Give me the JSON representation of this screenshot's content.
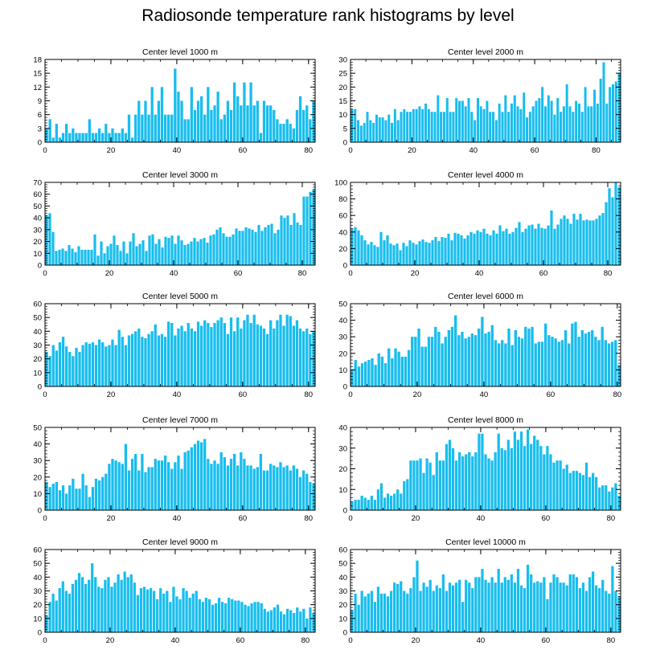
{
  "title": "Radiosonde temperature rank histograms by level",
  "colors": {
    "bar": "#18BDEE",
    "axis": "#000000",
    "background": "#ffffff"
  },
  "chart_data": [
    {
      "type": "bar",
      "title": "Center level 1000 m",
      "x_start": 0,
      "xticks": [
        0,
        20,
        40,
        60,
        80
      ],
      "ylim": [
        0,
        18
      ],
      "yticks": [
        0,
        3,
        6,
        9,
        12,
        15,
        18
      ],
      "values": [
        3,
        5,
        1,
        4,
        1,
        2,
        4,
        2,
        3,
        2,
        2,
        2,
        2,
        5,
        2,
        2,
        3,
        2,
        4,
        2,
        3,
        2,
        2,
        3,
        2,
        6,
        1,
        6,
        9,
        6,
        9,
        6,
        12,
        6,
        9,
        12,
        6,
        6,
        6,
        16,
        11,
        9,
        5,
        5,
        12,
        7,
        9,
        10,
        6,
        12,
        7,
        8,
        11,
        5,
        6,
        9,
        7,
        13,
        10,
        8,
        13,
        8,
        13,
        8,
        9,
        2,
        9,
        8,
        8,
        7,
        5,
        4,
        4,
        5,
        4,
        3,
        7,
        10,
        7,
        8,
        5,
        9
      ]
    },
    {
      "type": "bar",
      "title": "Center level 2000 m",
      "x_start": 0,
      "xticks": [
        0,
        20,
        40,
        60,
        80
      ],
      "ylim": [
        0,
        30
      ],
      "yticks": [
        0,
        5,
        10,
        15,
        20,
        25,
        30
      ],
      "values": [
        12,
        12,
        8,
        6,
        7,
        11,
        8,
        7,
        10,
        9,
        9,
        8,
        10,
        7,
        12,
        8,
        11,
        12,
        11,
        11,
        12,
        12,
        13,
        12,
        14,
        12,
        11,
        11,
        17,
        11,
        11,
        16,
        11,
        11,
        16,
        15,
        15,
        13,
        16,
        11,
        8,
        16,
        13,
        12,
        15,
        11,
        11,
        8,
        14,
        11,
        17,
        11,
        14,
        17,
        13,
        12,
        18,
        9,
        11,
        13,
        15,
        16,
        20,
        13,
        17,
        15,
        10,
        16,
        11,
        13,
        21,
        13,
        11,
        15,
        14,
        11,
        20,
        13,
        13,
        19,
        14,
        23,
        29,
        14,
        20,
        21,
        22,
        25
      ]
    },
    {
      "type": "bar",
      "title": "Center level 3000 m",
      "x_start": 0,
      "xticks": [
        0,
        20,
        40,
        60,
        80
      ],
      "ylim": [
        0,
        70
      ],
      "yticks": [
        0,
        10,
        20,
        30,
        40,
        50,
        60,
        70
      ],
      "values": [
        42,
        44,
        28,
        12,
        13,
        14,
        12,
        17,
        14,
        11,
        16,
        13,
        13,
        13,
        13,
        26,
        8,
        20,
        10,
        16,
        18,
        25,
        17,
        12,
        20,
        10,
        20,
        27,
        16,
        18,
        21,
        12,
        25,
        26,
        18,
        22,
        15,
        24,
        23,
        25,
        18,
        25,
        21,
        17,
        18,
        20,
        23,
        20,
        22,
        23,
        19,
        25,
        26,
        30,
        32,
        27,
        24,
        24,
        26,
        31,
        29,
        29,
        32,
        31,
        30,
        28,
        34,
        29,
        32,
        34,
        35,
        27,
        30,
        42,
        40,
        42,
        34,
        44,
        36,
        34,
        58,
        58,
        62,
        64
      ]
    },
    {
      "type": "bar",
      "title": "Center level 4000 m",
      "x_start": 0,
      "xticks": [
        0,
        20,
        40,
        60,
        80
      ],
      "ylim": [
        0,
        100
      ],
      "yticks": [
        0,
        20,
        40,
        60,
        80,
        100
      ],
      "values": [
        44,
        46,
        42,
        36,
        30,
        25,
        28,
        24,
        22,
        40,
        30,
        36,
        26,
        24,
        26,
        18,
        27,
        23,
        30,
        27,
        25,
        29,
        31,
        28,
        27,
        30,
        34,
        29,
        34,
        33,
        38,
        30,
        39,
        38,
        36,
        32,
        36,
        40,
        38,
        42,
        40,
        44,
        38,
        36,
        42,
        38,
        48,
        41,
        44,
        38,
        40,
        45,
        52,
        40,
        44,
        48,
        49,
        44,
        50,
        45,
        44,
        48,
        66,
        44,
        49,
        56,
        60,
        56,
        50,
        62,
        55,
        62,
        54,
        55,
        54,
        54,
        56,
        60,
        63,
        76,
        93,
        82,
        100,
        94
      ]
    },
    {
      "type": "bar",
      "title": "Center level 5000 m",
      "x_start": 0,
      "xticks": [
        0,
        20,
        40,
        60,
        80
      ],
      "ylim": [
        0,
        60
      ],
      "yticks": [
        0,
        10,
        20,
        30,
        40,
        50,
        60
      ],
      "values": [
        25,
        22,
        30,
        26,
        32,
        36,
        29,
        25,
        22,
        28,
        25,
        30,
        32,
        31,
        32,
        30,
        34,
        32,
        29,
        30,
        34,
        30,
        41,
        36,
        30,
        37,
        38,
        40,
        42,
        36,
        35,
        38,
        40,
        45,
        37,
        38,
        36,
        47,
        46,
        37,
        42,
        44,
        40,
        46,
        42,
        40,
        47,
        44,
        48,
        46,
        43,
        46,
        48,
        50,
        46,
        38,
        50,
        40,
        50,
        42,
        48,
        52,
        46,
        52,
        45,
        44,
        42,
        38,
        48,
        42,
        48,
        52,
        44,
        52,
        51,
        44,
        48,
        42,
        40,
        42,
        38,
        40
      ]
    },
    {
      "type": "bar",
      "title": "Center level 6000 m",
      "x_start": 0,
      "xticks": [
        0,
        20,
        40,
        60,
        80
      ],
      "ylim": [
        0,
        50
      ],
      "yticks": [
        0,
        10,
        20,
        30,
        40,
        50
      ],
      "values": [
        10,
        16,
        12,
        14,
        15,
        16,
        17,
        13,
        20,
        18,
        14,
        23,
        17,
        23,
        21,
        18,
        18,
        22,
        30,
        30,
        35,
        24,
        24,
        30,
        30,
        36,
        33,
        26,
        30,
        34,
        36,
        43,
        31,
        33,
        29,
        30,
        32,
        31,
        35,
        42,
        32,
        33,
        37,
        28,
        26,
        28,
        26,
        35,
        25,
        34,
        30,
        29,
        36,
        35,
        36,
        26,
        27,
        27,
        38,
        31,
        30,
        29,
        27,
        28,
        34,
        26,
        38,
        39,
        30,
        34,
        32,
        33,
        34,
        30,
        28,
        36,
        28,
        26,
        27,
        28,
        13
      ]
    },
    {
      "type": "bar",
      "title": "Center level 7000 m",
      "x_start": 0,
      "xticks": [
        0,
        20,
        40,
        60,
        80
      ],
      "ylim": [
        0,
        50
      ],
      "yticks": [
        0,
        10,
        20,
        30,
        40,
        50
      ],
      "values": [
        17,
        14,
        16,
        17,
        12,
        15,
        10,
        15,
        19,
        13,
        13,
        22,
        15,
        8,
        14,
        19,
        18,
        20,
        22,
        28,
        31,
        30,
        29,
        28,
        40,
        24,
        31,
        34,
        24,
        34,
        23,
        26,
        26,
        31,
        30,
        30,
        33,
        29,
        25,
        29,
        33,
        25,
        35,
        36,
        38,
        40,
        42,
        41,
        43,
        31,
        28,
        30,
        28,
        35,
        32,
        27,
        31,
        34,
        27,
        35,
        31,
        27,
        27,
        25,
        26,
        34,
        24,
        24,
        28,
        27,
        26,
        29,
        26,
        27,
        24,
        27,
        25,
        20,
        24,
        22,
        17,
        16
      ]
    },
    {
      "type": "bar",
      "title": "Center level 8000 m",
      "x_start": 0,
      "xticks": [
        0,
        20,
        40,
        60,
        80
      ],
      "ylim": [
        0,
        40
      ],
      "yticks": [
        0,
        10,
        20,
        30,
        40
      ],
      "values": [
        4,
        5,
        5,
        7,
        6,
        5,
        7,
        5,
        10,
        13,
        6,
        8,
        7,
        8,
        10,
        8,
        14,
        15,
        24,
        24,
        24,
        25,
        18,
        25,
        23,
        17,
        28,
        24,
        24,
        32,
        34,
        30,
        24,
        28,
        26,
        27,
        28,
        26,
        28,
        37,
        37,
        27,
        25,
        24,
        28,
        37,
        30,
        29,
        34,
        30,
        38,
        34,
        38,
        31,
        39,
        32,
        36,
        34,
        31,
        27,
        31,
        27,
        23,
        24,
        24,
        20,
        22,
        18,
        19,
        19,
        18,
        17,
        23,
        16,
        18,
        16,
        11,
        12,
        12,
        9,
        11,
        13,
        7
      ]
    },
    {
      "type": "bar",
      "title": "Center level 9000 m",
      "x_start": 0,
      "xticks": [
        0,
        20,
        40,
        60,
        80
      ],
      "ylim": [
        0,
        60
      ],
      "yticks": [
        0,
        10,
        20,
        30,
        40,
        50,
        60
      ],
      "values": [
        12,
        22,
        28,
        23,
        32,
        37,
        30,
        28,
        35,
        38,
        43,
        40,
        35,
        38,
        50,
        40,
        33,
        32,
        38,
        40,
        33,
        36,
        42,
        38,
        44,
        40,
        42,
        36,
        27,
        32,
        33,
        31,
        32,
        30,
        24,
        32,
        28,
        30,
        22,
        33,
        26,
        24,
        32,
        30,
        25,
        28,
        30,
        24,
        22,
        25,
        24,
        20,
        21,
        25,
        22,
        21,
        25,
        24,
        23,
        23,
        22,
        20,
        19,
        21,
        22,
        22,
        21,
        17,
        15,
        16,
        18,
        20,
        15,
        13,
        17,
        16,
        14,
        18,
        15,
        17,
        10,
        18,
        14
      ]
    },
    {
      "type": "bar",
      "title": "Center level 10000 m",
      "x_start": 0,
      "xticks": [
        0,
        20,
        40,
        60,
        80
      ],
      "ylim": [
        0,
        60
      ],
      "yticks": [
        0,
        10,
        20,
        30,
        40,
        50,
        60
      ],
      "values": [
        16,
        28,
        20,
        30,
        26,
        28,
        30,
        22,
        33,
        28,
        28,
        26,
        30,
        36,
        35,
        37,
        30,
        28,
        32,
        40,
        52,
        30,
        36,
        33,
        38,
        30,
        34,
        32,
        42,
        30,
        36,
        34,
        36,
        38,
        22,
        38,
        36,
        32,
        40,
        40,
        46,
        38,
        36,
        40,
        36,
        46,
        36,
        40,
        38,
        42,
        36,
        46,
        34,
        32,
        49,
        42,
        36,
        37,
        36,
        40,
        24,
        36,
        42,
        40,
        36,
        36,
        34,
        42,
        42,
        40,
        32,
        36,
        30,
        40,
        44,
        34,
        32,
        38,
        30,
        28,
        48,
        30,
        26
      ]
    }
  ]
}
